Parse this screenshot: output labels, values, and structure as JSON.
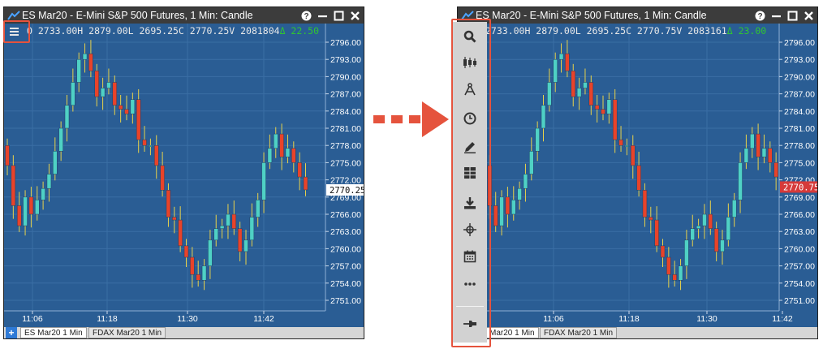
{
  "left_window": {
    "title": "ES Mar20 - E-Mini S&P 500 Futures, 1 Min: Candle",
    "info_prefix": "O 2733.00H 2879.00L 2695.25C 2770.25V 2081804",
    "info_delta": "Δ 22.50",
    "price_badge": "2770.25",
    "tabs": [
      "ES Mar20 1 Min",
      "FDAX Mar20 1 Min"
    ],
    "add_tab_label": "+"
  },
  "right_window": {
    "title": "ES Mar20 - E-Mini S&P 500 Futures, 1 Min: Candle",
    "info_prefix": "2733.00H 2879.00L 2695.25C 2770.75V 2083161",
    "info_delta": "Δ 23.00",
    "price_badge": "2770.75",
    "tabs": [
      "Mar20 1 Min",
      "FDAX Mar20 1 Min"
    ]
  },
  "price_axis": [
    "2796.00",
    "2793.00",
    "2790.00",
    "2787.00",
    "2784.00",
    "2781.00",
    "2778.00",
    "2775.00",
    "2772.00",
    "2769.00",
    "2766.00",
    "2763.00",
    "2760.00",
    "2757.00",
    "2754.00",
    "2751.00"
  ],
  "time_axis": [
    "11:06",
    "11:18",
    "11:30",
    "11:42"
  ],
  "toolbar_icons": [
    "search-icon",
    "candlestick-icon",
    "drawing-compass-icon",
    "clock-icon",
    "pencil-icon",
    "template-icon",
    "download-icon",
    "crosshair-icon",
    "calendar-icon",
    "more-icon",
    "pin-icon"
  ],
  "colors": {
    "chart_bg": "#2a5d94",
    "up_candle": "#4fd1c5",
    "down_candle": "#e8432a",
    "wick": "#e8d24a",
    "highlight": "#e5533d",
    "price_badge_up": "#ffffff",
    "price_badge_down": "#d63a3a"
  }
}
